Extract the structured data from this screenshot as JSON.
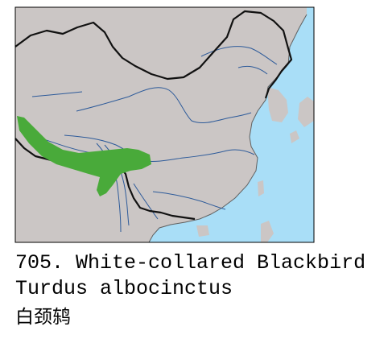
{
  "map": {
    "land_color": "#cbc6c5",
    "water_color": "#a9def7",
    "range_color": "#49aa3a",
    "river_color": "#2e5b9a",
    "border_color": "#111111"
  },
  "caption": {
    "line1": "705. White-collared Blackbird",
    "line2": "Turdus albocinctus",
    "line3": "白颈鸫"
  }
}
